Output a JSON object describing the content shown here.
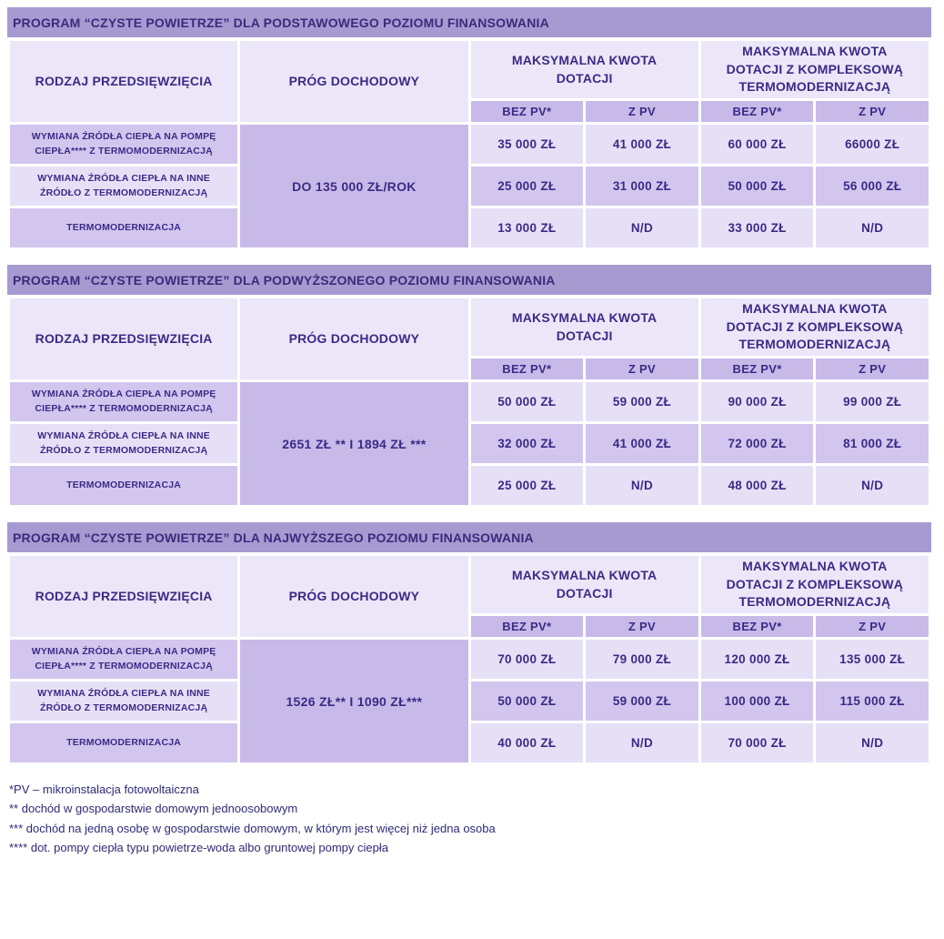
{
  "colors": {
    "title_bar_bg": "#a79ad1",
    "title_text": "#3b2a7c",
    "header_bg": "#ebe7f8",
    "mid_bg": "#c8bae8",
    "cell_light": "#e6e0f7",
    "cell_dark": "#d2c6ee",
    "text": "#3b2a86",
    "footnote_text": "#2d2b76",
    "table_gap": "#ffffff"
  },
  "tables": [
    {
      "title": "PROGRAM “CZYSTE POWIETRZE” DLA PODSTAWOWEGO POZIOMU FINANSOWANIA",
      "col1_header": "RODZAJ PRZEDSIĘWZIĘCIA",
      "col2_header": "PRÓG DOCHODOWY",
      "group1_header": "MAKSYMALNA KWOTA DOTACJI",
      "group2_header": "MAKSYMALNA KWOTA DOTACJI Z KOMPLEKSOWĄ TERMOMODERNIZACJĄ",
      "subheaders": [
        "BEZ PV*",
        "Z PV",
        "BEZ PV*",
        "Z PV"
      ],
      "income_threshold": "DO 135 000 ZŁ/ROK",
      "rows": [
        {
          "label": "WYMIANA ŹRÓDŁA CIEPŁA NA POMPĘ CIEPŁA**** Z TERMOMODERNIZACJĄ",
          "values": [
            "35 000 ZŁ",
            "41 000 ZŁ",
            "60 000 ZŁ",
            "66000 ZŁ"
          ]
        },
        {
          "label": "WYMIANA ŹRÓDŁA CIEPŁA NA INNE ŹRÓDŁO Z TERMOMODERNIZACJĄ",
          "values": [
            "25 000 ZŁ",
            "31 000 ZŁ",
            "50 000 ZŁ",
            "56 000 ZŁ"
          ]
        },
        {
          "label": "TERMOMODERNIZACJA",
          "values": [
            "13 000 ZŁ",
            "N/D",
            "33 000 ZŁ",
            "N/D"
          ]
        }
      ]
    },
    {
      "title": "PROGRAM “CZYSTE POWIETRZE” DLA PODWYŻSZONEGO POZIOMU FINANSOWANIA",
      "col1_header": "RODZAJ PRZEDSIĘWZIĘCIA",
      "col2_header": "PRÓG DOCHODOWY",
      "group1_header": "MAKSYMALNA KWOTA DOTACJI",
      "group2_header": "MAKSYMALNA KWOTA DOTACJI Z KOMPLEKSOWĄ TERMOMODERNIZACJĄ",
      "subheaders": [
        "BEZ PV*",
        "Z PV",
        "BEZ PV*",
        "Z PV"
      ],
      "income_threshold": "2651 ZŁ ** I 1894 ZŁ ***",
      "rows": [
        {
          "label": "WYMIANA ŹRÓDŁA CIEPŁA NA POMPĘ CIEPŁA**** Z TERMOMODERNIZACJĄ",
          "values": [
            "50 000 ZŁ",
            "59 000 ZŁ",
            "90 000 ZŁ",
            "99 000 ZŁ"
          ]
        },
        {
          "label": "WYMIANA ŹRÓDŁA CIEPŁA NA INNE ŹRÓDŁO Z TERMOMODERNIZACJĄ",
          "values": [
            "32 000 ZŁ",
            "41 000 ZŁ",
            "72 000 ZŁ",
            "81 000 ZŁ"
          ]
        },
        {
          "label": "TERMOMODERNIZACJA",
          "values": [
            "25 000 ZŁ",
            "N/D",
            "48 000 ZŁ",
            "N/D"
          ]
        }
      ]
    },
    {
      "title": "PROGRAM “CZYSTE POWIETRZE” DLA NAJWYŻSZEGO POZIOMU FINANSOWANIA",
      "col1_header": "RODZAJ PRZEDSIĘWZIĘCIA",
      "col2_header": "PRÓG DOCHODOWY",
      "group1_header": "MAKSYMALNA KWOTA DOTACJI",
      "group2_header": "MAKSYMALNA KWOTA DOTACJI Z KOMPLEKSOWĄ TERMOMODERNIZACJĄ",
      "subheaders": [
        "BEZ PV*",
        "Z PV",
        "BEZ PV*",
        "Z PV"
      ],
      "income_threshold": "1526 ZŁ** I 1090 ZŁ***",
      "rows": [
        {
          "label": "WYMIANA ŹRÓDŁA CIEPŁA NA POMPĘ CIEPŁA**** Z TERMOMODERNIZACJĄ",
          "values": [
            "70 000 ZŁ",
            "79 000 ZŁ",
            "120 000 ZŁ",
            "135 000 ZŁ"
          ]
        },
        {
          "label": "WYMIANA ŹRÓDŁA CIEPŁA NA INNE ŹRÓDŁO Z TERMOMODERNIZACJĄ",
          "values": [
            "50 000 ZŁ",
            "59 000 ZŁ",
            "100 000 ZŁ",
            "115 000 ZŁ"
          ]
        },
        {
          "label": "TERMOMODERNIZACJA",
          "values": [
            "40 000 ZŁ",
            "N/D",
            "70 000 ZŁ",
            "N/D"
          ]
        }
      ]
    }
  ],
  "footnotes": [
    "*PV – mikroinstalacja fotowoltaiczna",
    "** dochód w gospodarstwie domowym jednoosobowym",
    "*** dochód na jedną osobę w gospodarstwie domowym, w którym jest więcej niż jedna osoba",
    "**** dot. pompy ciepła typu powietrze-woda albo gruntowej pompy ciepła"
  ]
}
